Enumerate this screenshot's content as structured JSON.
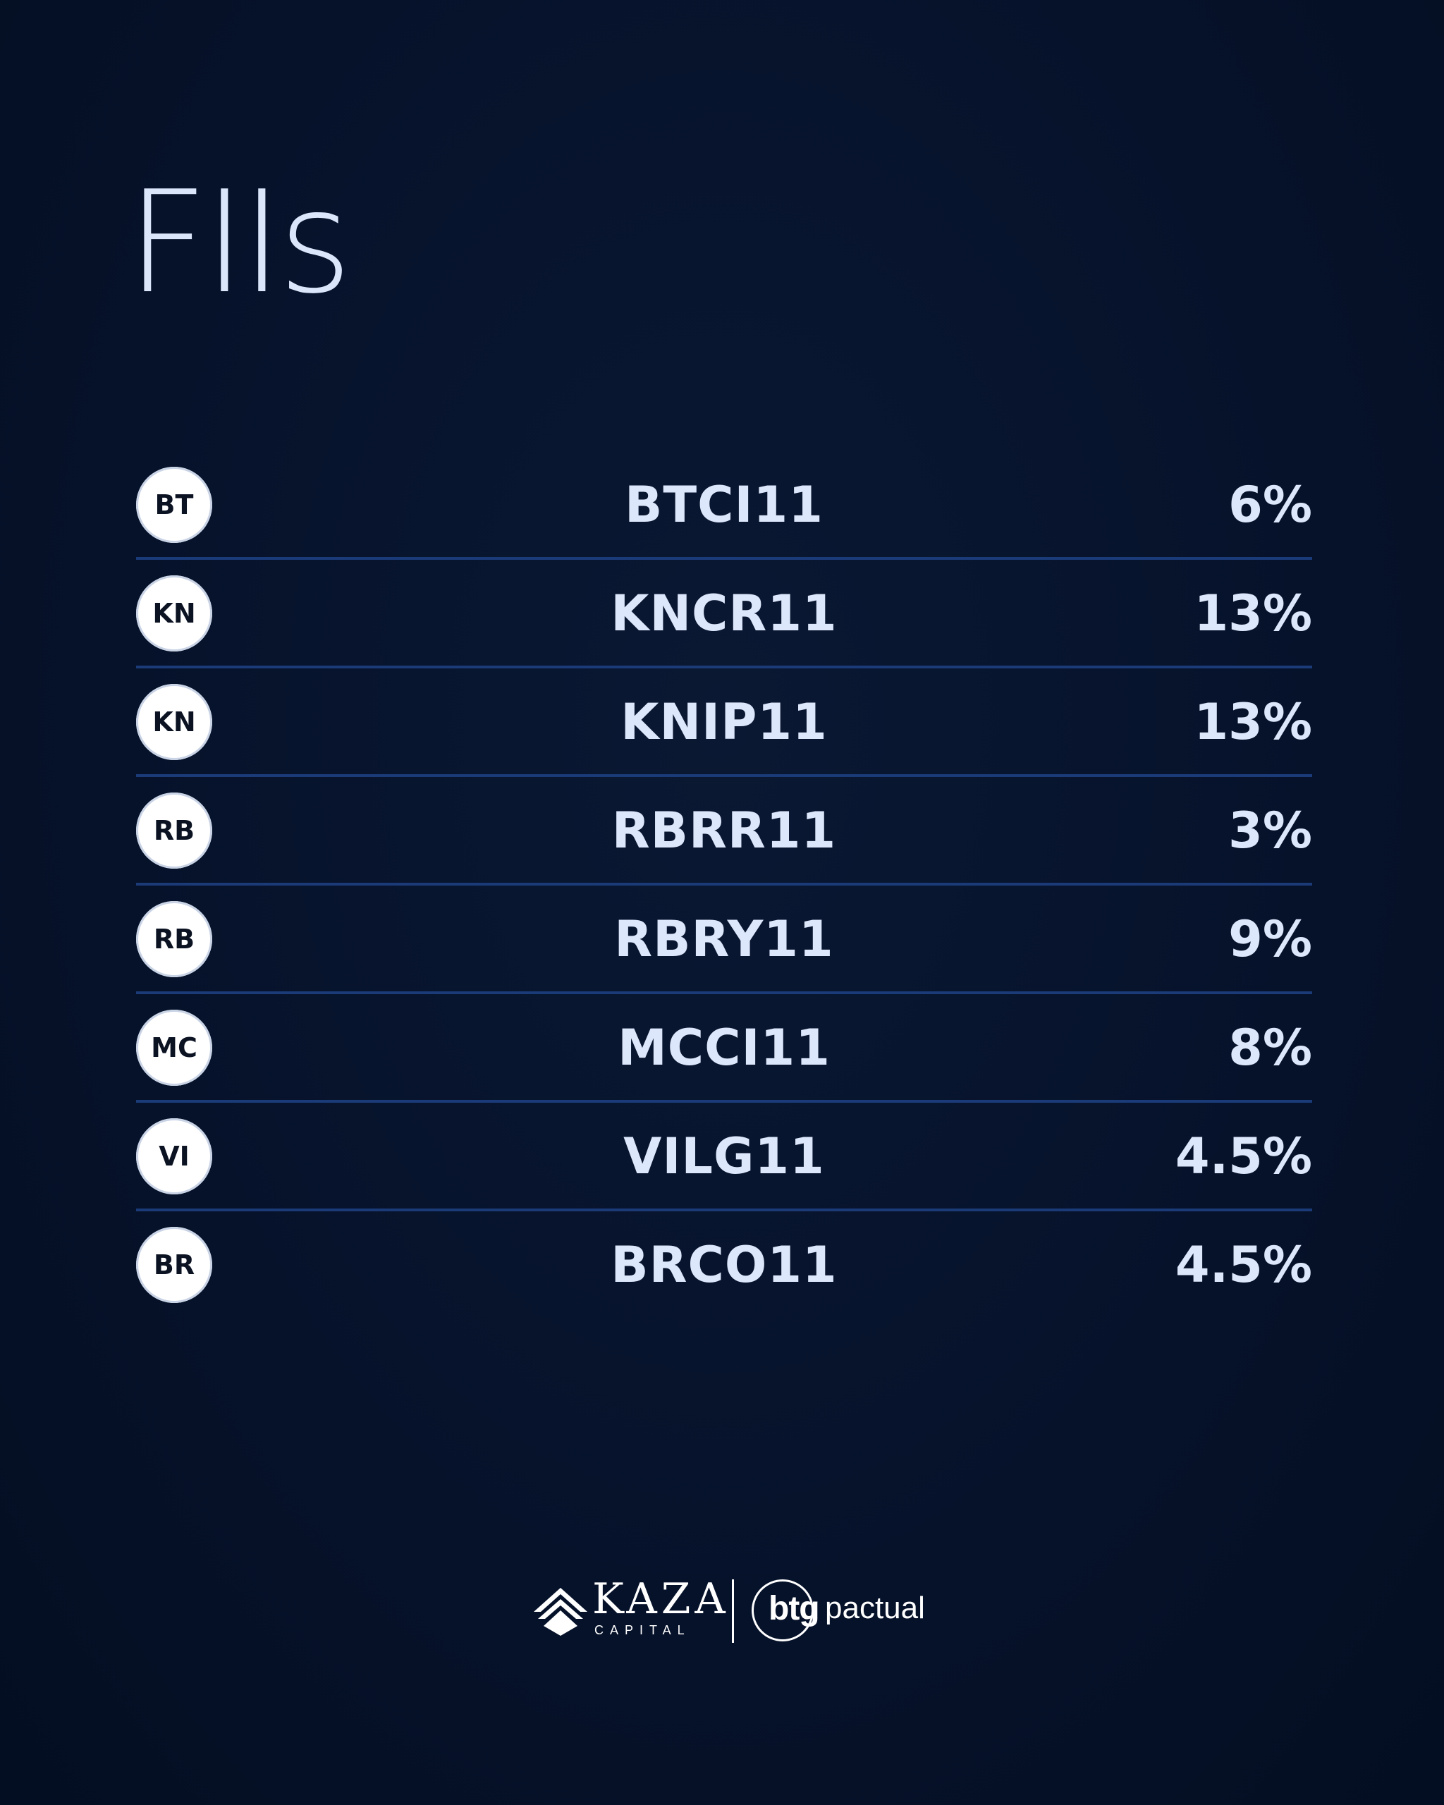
{
  "title": "FIIs",
  "rows": [
    {
      "badge": "BT",
      "ticker": "BTCI11",
      "percent": "6%"
    },
    {
      "badge": "KN",
      "ticker": "KNCR11",
      "percent": "13%"
    },
    {
      "badge": "KN",
      "ticker": "KNIP11",
      "percent": "13%"
    },
    {
      "badge": "RB",
      "ticker": "RBRR11",
      "percent": "3%"
    },
    {
      "badge": "RB",
      "ticker": "RBRY11",
      "percent": "9%"
    },
    {
      "badge": "MC",
      "ticker": "MCCI11",
      "percent": "8%"
    },
    {
      "badge": "VI",
      "ticker": "VILG11",
      "percent": "4.5%"
    },
    {
      "badge": "BR",
      "ticker": "BRCO11",
      "percent": "4.5%"
    }
  ],
  "footer": {
    "kaza_name": "KAZA",
    "kaza_subtitle": "CAPITAL",
    "btg_name": "btg",
    "btg_suffix": "pactual"
  },
  "colors": {
    "background": "#06132a",
    "divider": "#1a3a78",
    "text": "#dde7fb"
  }
}
